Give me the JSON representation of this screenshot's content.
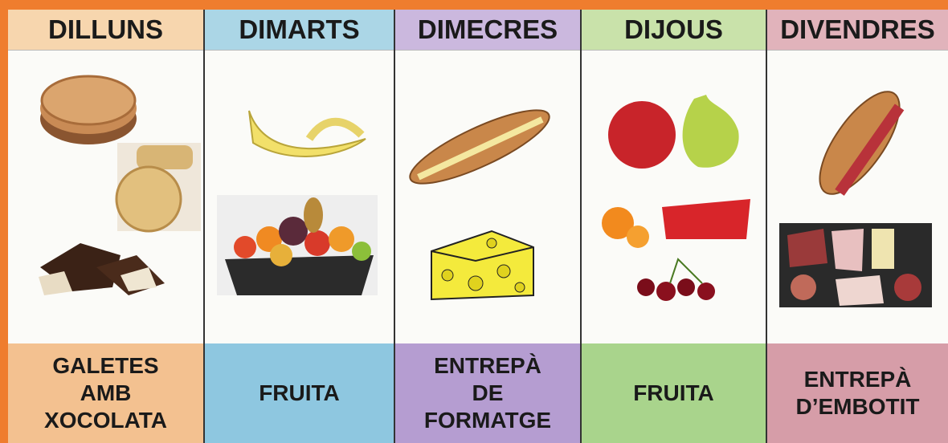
{
  "days": [
    {
      "name": "DILLUNS",
      "snack": [
        "GALETES",
        "AMB",
        "XOCOLATA"
      ]
    },
    {
      "name": "DIMARTS",
      "snack": [
        "FRUITA"
      ]
    },
    {
      "name": "DIMECRES",
      "snack": [
        "ENTREPÀ",
        "DE",
        "FORMATGE"
      ]
    },
    {
      "name": "DIJOUS",
      "snack": [
        "FRUITA"
      ]
    },
    {
      "name": "DIVENDRES",
      "snack": [
        "ENTREPÀ",
        "D’EMBOTIT"
      ]
    }
  ]
}
